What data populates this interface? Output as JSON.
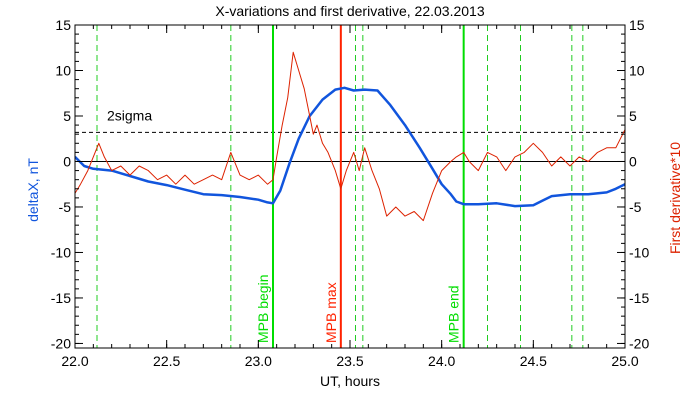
{
  "chart_data": {
    "type": "line",
    "title": "X-variations and first derivative, 22.03.2013",
    "xlabel": "UT, hours",
    "ylabel_left": "deltaX, nT",
    "ylabel_right": "First derivative*10",
    "xlim": [
      22.0,
      25.0
    ],
    "ylim": [
      -20.5,
      15
    ],
    "x_ticks": [
      22.0,
      22.5,
      23.0,
      23.5,
      24.0,
      24.5,
      25.0
    ],
    "x_tick_labels": [
      "22.0",
      "22.5",
      "23.0",
      "23.5",
      "24.0",
      "24.5",
      "25.0"
    ],
    "y_ticks": [
      -20,
      -15,
      -10,
      -5,
      0,
      5,
      10,
      15
    ],
    "y_tick_labels": [
      "-20",
      "-15",
      "-10",
      "-5",
      "0",
      "5",
      "10",
      "15"
    ],
    "grid": false,
    "threshold": {
      "label": "2sigma",
      "y": 3.2,
      "style": "dashed",
      "color": "#000000"
    },
    "zero_line": {
      "y": 0,
      "color": "#000000"
    },
    "dashed_markers": {
      "color": "#22cc22",
      "x": [
        22.12,
        22.85,
        23.53,
        23.57,
        24.25,
        24.43,
        24.71,
        24.77
      ]
    },
    "event_markers": [
      {
        "label": "MPB begin",
        "x": 23.08,
        "color": "#00dd00"
      },
      {
        "label": "MPB max",
        "x": 23.45,
        "color": "#ff2200"
      },
      {
        "label": "MPB end",
        "x": 24.12,
        "color": "#00dd00"
      }
    ],
    "series": [
      {
        "name": "deltaX, nT",
        "color": "#1155dd",
        "x": [
          22.0,
          22.05,
          22.1,
          22.2,
          22.3,
          22.4,
          22.5,
          22.6,
          22.7,
          22.8,
          22.9,
          23.0,
          23.05,
          23.08,
          23.12,
          23.17,
          23.22,
          23.28,
          23.35,
          23.42,
          23.47,
          23.52,
          23.58,
          23.65,
          23.72,
          23.8,
          23.88,
          23.95,
          24.0,
          24.05,
          24.08,
          24.12,
          24.2,
          24.3,
          24.4,
          24.5,
          24.55,
          24.6,
          24.7,
          24.8,
          24.9,
          24.95,
          25.0
        ],
        "y": [
          0.5,
          -0.5,
          -0.8,
          -1.0,
          -1.6,
          -2.2,
          -2.6,
          -3.1,
          -3.6,
          -3.7,
          -3.9,
          -4.2,
          -4.5,
          -4.6,
          -3.2,
          -0.2,
          2.5,
          5.0,
          6.8,
          7.9,
          8.1,
          7.8,
          7.9,
          7.8,
          6.2,
          4.0,
          1.5,
          -0.8,
          -2.5,
          -3.6,
          -4.4,
          -4.7,
          -4.7,
          -4.6,
          -4.9,
          -4.8,
          -4.3,
          -3.8,
          -3.6,
          -3.6,
          -3.4,
          -3.0,
          -2.5
        ]
      },
      {
        "name": "First derivative*10",
        "color": "#dd2200",
        "x": [
          22.0,
          22.03,
          22.07,
          22.1,
          22.13,
          22.16,
          22.2,
          22.25,
          22.3,
          22.35,
          22.4,
          22.45,
          22.5,
          22.55,
          22.6,
          22.65,
          22.7,
          22.75,
          22.8,
          22.85,
          22.9,
          22.95,
          23.0,
          23.05,
          23.08,
          23.1,
          23.13,
          23.16,
          23.19,
          23.22,
          23.25,
          23.28,
          23.3,
          23.32,
          23.35,
          23.38,
          23.42,
          23.45,
          23.48,
          23.52,
          23.55,
          23.58,
          23.62,
          23.66,
          23.7,
          23.75,
          23.8,
          23.85,
          23.9,
          23.95,
          24.0,
          24.05,
          24.08,
          24.12,
          24.15,
          24.2,
          24.25,
          24.3,
          24.35,
          24.4,
          24.45,
          24.5,
          24.55,
          24.6,
          24.65,
          24.7,
          24.75,
          24.8,
          24.85,
          24.9,
          24.95,
          25.0
        ],
        "y": [
          -3.5,
          -2.5,
          -1.0,
          0.5,
          2.0,
          0.5,
          -1.0,
          -0.5,
          -1.5,
          -0.5,
          -1.0,
          -2.0,
          -1.5,
          -2.5,
          -1.5,
          -2.5,
          -2.0,
          -1.5,
          -2.0,
          1.0,
          -1.5,
          -2.0,
          -1.5,
          -2.5,
          -2.0,
          0.5,
          4.0,
          7.0,
          12.0,
          10.0,
          8.0,
          5.0,
          3.0,
          4.0,
          2.0,
          1.0,
          -1.0,
          -3.0,
          -1.0,
          1.0,
          -1.0,
          1.5,
          -1.0,
          -3.0,
          -6.0,
          -5.0,
          -6.0,
          -5.5,
          -6.5,
          -3.5,
          -1.0,
          0.0,
          0.5,
          1.0,
          0.0,
          -1.0,
          1.0,
          0.5,
          -1.0,
          0.5,
          1.0,
          2.0,
          1.0,
          -0.5,
          0.5,
          -0.5,
          0.5,
          0.0,
          1.0,
          1.5,
          1.5,
          3.5
        ]
      }
    ]
  }
}
